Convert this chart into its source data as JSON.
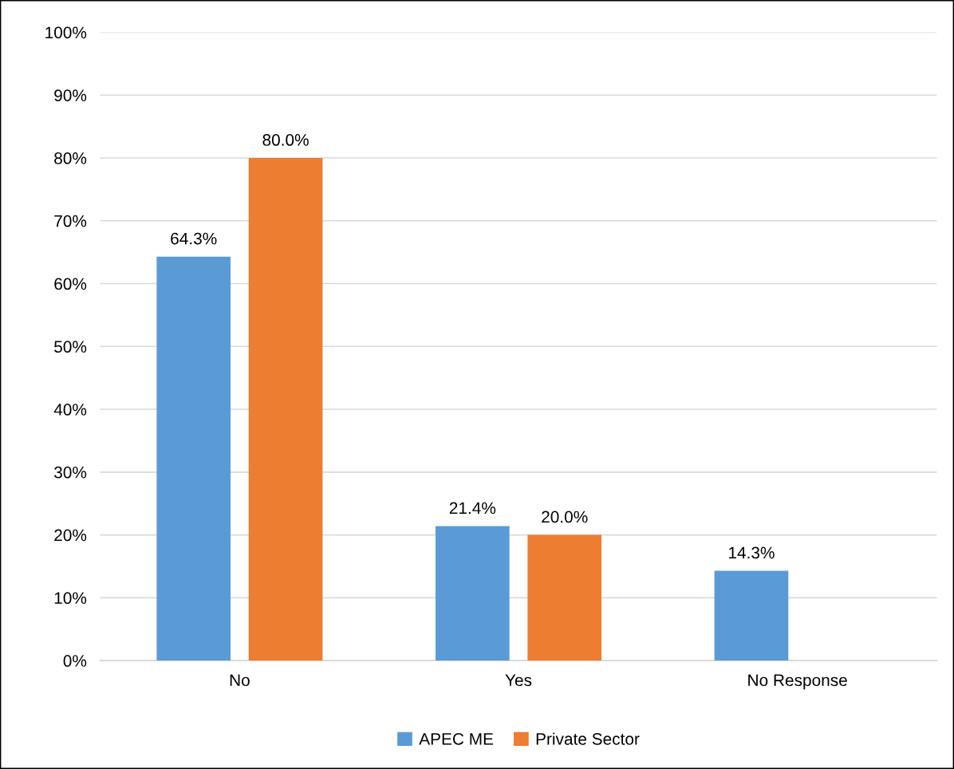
{
  "chart_data": {
    "type": "bar",
    "categories": [
      "No",
      "Yes",
      "No Response"
    ],
    "series": [
      {
        "name": "APEC ME",
        "color": "#5b9bd5",
        "values": [
          64.3,
          21.4,
          14.3
        ],
        "value_labels": [
          "64.3%",
          "21.4%",
          "14.3%"
        ]
      },
      {
        "name": "Private Sector",
        "color": "#ed7d31",
        "values": [
          80.0,
          20.0,
          null
        ],
        "value_labels": [
          "80.0%",
          "20.0%",
          null
        ]
      }
    ],
    "ylim": [
      0,
      100
    ],
    "yticks": [
      {
        "value": 0,
        "label": "0%"
      },
      {
        "value": 10,
        "label": "10%"
      },
      {
        "value": 20,
        "label": "20%"
      },
      {
        "value": 30,
        "label": "30%"
      },
      {
        "value": 40,
        "label": "40%"
      },
      {
        "value": 50,
        "label": "50%"
      },
      {
        "value": 60,
        "label": "60%"
      },
      {
        "value": 70,
        "label": "70%"
      },
      {
        "value": 80,
        "label": "80%"
      },
      {
        "value": 90,
        "label": "90%"
      },
      {
        "value": 100,
        "label": "100%"
      }
    ],
    "grid": "y",
    "legend": "bottom"
  }
}
